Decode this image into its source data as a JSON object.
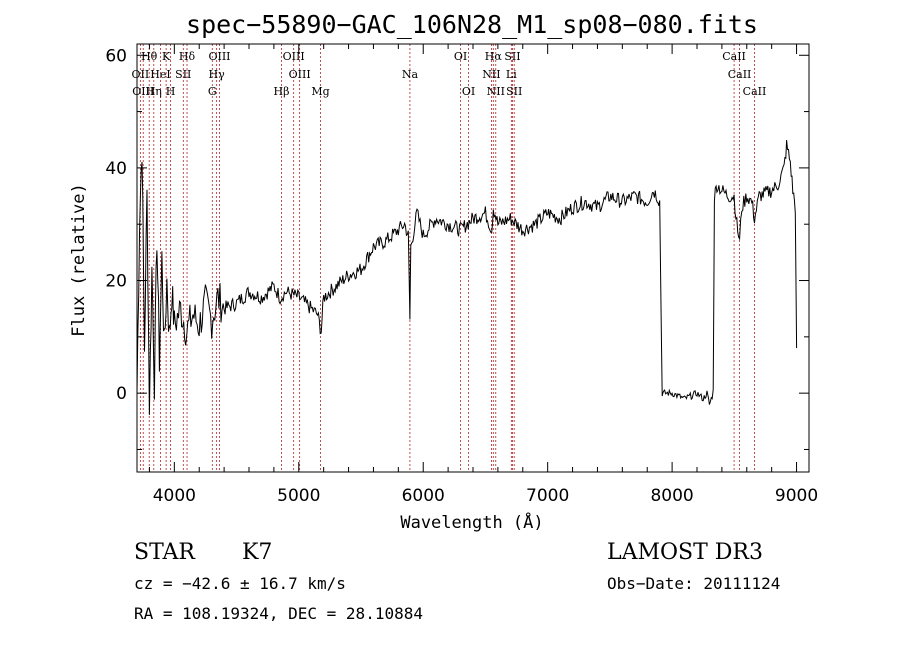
{
  "chart_data": {
    "type": "line",
    "title": "spec−55890−GAC_106N28_M1_sp08−080.fits",
    "xlabel": "Wavelength (Å)",
    "ylabel": "Flux (relative)",
    "xlim": [
      3700,
      9100
    ],
    "ylim": [
      -14,
      62
    ],
    "x_ticks": [
      4000,
      5000,
      6000,
      7000,
      8000,
      9000
    ],
    "y_ticks": [
      0,
      20,
      40,
      60
    ],
    "grid": false,
    "series": [
      {
        "name": "spectrum",
        "x": [
          3700,
          3720,
          3740,
          3760,
          3780,
          3800,
          3820,
          3840,
          3860,
          3880,
          3900,
          3920,
          3940,
          3960,
          3980,
          4000,
          4050,
          4100,
          4150,
          4200,
          4250,
          4300,
          4350,
          4400,
          4500,
          4600,
          4700,
          4800,
          4850,
          4900,
          5000,
          5100,
          5150,
          5180,
          5200,
          5300,
          5400,
          5500,
          5600,
          5700,
          5800,
          5850,
          5880,
          5893,
          5900,
          5950,
          6000,
          6100,
          6200,
          6300,
          6400,
          6500,
          6550,
          6563,
          6600,
          6700,
          6800,
          6900,
          7000,
          7100,
          7200,
          7300,
          7400,
          7500,
          7600,
          7700,
          7800,
          7850,
          7880,
          7900,
          7920,
          7940,
          8000,
          8100,
          8200,
          8250,
          8280,
          8300,
          8330,
          8340,
          8360,
          8400,
          8450,
          8498,
          8520,
          8542,
          8560,
          8600,
          8640,
          8662,
          8700,
          8800,
          8850,
          8900,
          8920,
          8950,
          8970,
          8990,
          9000
        ],
        "y": [
          0,
          30,
          44,
          8,
          35,
          -2,
          22,
          2,
          28,
          6,
          24,
          8,
          20,
          10,
          18,
          12,
          15,
          11,
          14,
          12,
          16,
          13,
          17,
          15,
          16,
          18,
          17,
          19,
          17,
          18,
          17,
          15,
          14,
          11,
          17,
          19,
          21,
          22,
          26,
          27,
          29,
          30,
          28,
          13,
          26,
          32,
          28,
          31,
          30,
          29,
          31,
          32,
          29,
          33,
          30,
          31,
          29,
          30,
          32,
          31,
          33,
          34,
          33,
          35,
          34,
          35,
          34,
          36,
          35,
          34,
          0,
          0,
          0,
          -1,
          0,
          -1,
          0,
          -2,
          0,
          35,
          37,
          36,
          35,
          35,
          30,
          27,
          33,
          35,
          34,
          31,
          35,
          36,
          37,
          40,
          44,
          41,
          36,
          33,
          8
        ]
      }
    ],
    "spectral_lines": [
      {
        "label": "Hθ",
        "x": 3798,
        "row": 0
      },
      {
        "label": "K",
        "x": 3934,
        "row": 0
      },
      {
        "label": "Hδ",
        "x": 4102,
        "row": 0
      },
      {
        "label": "OIII",
        "x": 4363,
        "row": 0
      },
      {
        "label": "OIII",
        "x": 4959,
        "row": 0
      },
      {
        "label": "OI",
        "x": 6300,
        "row": 0
      },
      {
        "label": "Hα",
        "x": 6563,
        "row": 0
      },
      {
        "label": "SII",
        "x": 6717,
        "row": 0
      },
      {
        "label": "CaII",
        "x": 8498,
        "row": 0
      },
      {
        "label": "OII",
        "x": 3727,
        "row": 1
      },
      {
        "label": "HeI",
        "x": 3889,
        "row": 1
      },
      {
        "label": "SII",
        "x": 4072,
        "row": 1
      },
      {
        "label": "Hγ",
        "x": 4340,
        "row": 1
      },
      {
        "label": "OIII",
        "x": 5007,
        "row": 1
      },
      {
        "label": "Na",
        "x": 5893,
        "row": 1
      },
      {
        "label": "NII",
        "x": 6548,
        "row": 1
      },
      {
        "label": "Li",
        "x": 6708,
        "row": 1
      },
      {
        "label": "CaII",
        "x": 8542,
        "row": 1
      },
      {
        "label": "OIII",
        "x": 3750,
        "row": 2
      },
      {
        "label": "Hη",
        "x": 3835,
        "row": 2
      },
      {
        "label": "H",
        "x": 3970,
        "row": 2
      },
      {
        "label": "G",
        "x": 4305,
        "row": 2
      },
      {
        "label": "Hβ",
        "x": 4861,
        "row": 2
      },
      {
        "label": "Mg",
        "x": 5175,
        "row": 2
      },
      {
        "label": "OI",
        "x": 6364,
        "row": 2
      },
      {
        "label": "NII",
        "x": 6583,
        "row": 2
      },
      {
        "label": "SII",
        "x": 6731,
        "row": 2
      },
      {
        "label": "CaII",
        "x": 8662,
        "row": 2
      }
    ]
  },
  "info": {
    "object_class": "STAR",
    "subclass": "K7",
    "survey": "LAMOST DR3",
    "redshift": "cz = −42.6 ± 16.7 km/s",
    "obs_date": "Obs−Date: 20111124",
    "coords": "RA = 108.19324, DEC =  28.10884"
  },
  "colors": {
    "spectrum": "#000000",
    "line_marker": "#b22222"
  }
}
